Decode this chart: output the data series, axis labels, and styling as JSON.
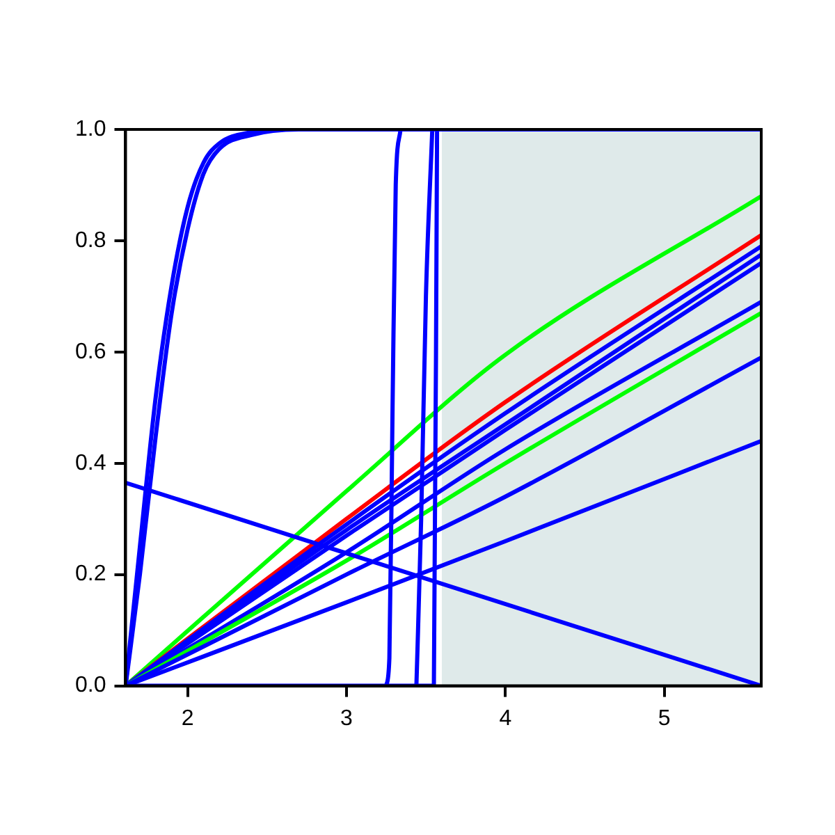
{
  "chart_data": {
    "type": "line",
    "xlim": [
      1.61,
      5.61
    ],
    "ylim": [
      0,
      1
    ],
    "xticks": [
      2,
      3,
      4,
      5
    ],
    "yticks": [
      {
        "value": 0,
        "label": "0.0"
      },
      {
        "value": 0.2,
        "label": "0.2"
      },
      {
        "value": 0.4,
        "label": "0.4"
      },
      {
        "value": 0.6,
        "label": "0.6"
      },
      {
        "value": 0.8,
        "label": "0.8"
      },
      {
        "value": 1,
        "label": "1.0"
      }
    ],
    "grid": false,
    "legend": false,
    "marker": "none",
    "line_style": "solid",
    "bands": [
      {
        "axis": "x",
        "from": 3.6,
        "to": 5.61,
        "color": "#dfeaea"
      }
    ],
    "series": [
      {
        "color": "#0000ff",
        "x": [
          1.61,
          1.7,
          1.8,
          1.9,
          2.0,
          2.1,
          2.2,
          2.4,
          2.6
        ],
        "values": [
          0,
          0.25,
          0.52,
          0.72,
          0.86,
          0.94,
          0.975,
          0.995,
          1
        ]
      },
      {
        "color": "#0000ff",
        "x": [
          1.61,
          1.7,
          1.8,
          1.9,
          2.0,
          2.1,
          2.2,
          2.4,
          2.7,
          5.61
        ],
        "values": [
          0,
          0.2,
          0.45,
          0.67,
          0.82,
          0.92,
          0.965,
          0.99,
          1,
          1
        ]
      },
      {
        "color": "#0000ff",
        "x": [
          3.25,
          3.27,
          3.29,
          3.31,
          3.34
        ],
        "values": [
          0,
          0.05,
          0.5,
          0.9,
          1
        ]
      },
      {
        "color": "#0000ff",
        "x": [
          3.44,
          3.47,
          3.5,
          3.54
        ],
        "values": [
          0,
          0.3,
          0.7,
          1
        ]
      },
      {
        "color": "#0000ff",
        "x": [
          1.61,
          3.55,
          3.57
        ],
        "values": [
          0,
          0,
          1
        ]
      },
      {
        "color": "#0000ff",
        "x": [
          1.61,
          5.61
        ],
        "values": [
          0.365,
          0
        ]
      },
      {
        "color": "#0000ff",
        "x": [
          1.61,
          3,
          4,
          5.61
        ],
        "values": [
          0,
          0.15,
          0.26,
          0.44
        ]
      },
      {
        "color": "#0000ff",
        "x": [
          1.61,
          3,
          4,
          5.61
        ],
        "values": [
          0,
          0.2,
          0.34,
          0.59
        ]
      },
      {
        "color": "#00ff00",
        "x": [
          1.61,
          3,
          4,
          5.61
        ],
        "values": [
          0,
          0.225,
          0.4,
          0.67
        ]
      },
      {
        "color": "#0000ff",
        "x": [
          1.61,
          3,
          4,
          5.61
        ],
        "values": [
          0,
          0.24,
          0.425,
          0.69
        ]
      },
      {
        "color": "#0000ff",
        "x": [
          1.61,
          3,
          4,
          5.61
        ],
        "values": [
          0,
          0.27,
          0.46,
          0.76
        ]
      },
      {
        "color": "#0000ff",
        "x": [
          1.61,
          3,
          4,
          5.61
        ],
        "values": [
          0,
          0.28,
          0.47,
          0.775
        ]
      },
      {
        "color": "#0000ff",
        "x": [
          1.61,
          3,
          4,
          5.61
        ],
        "values": [
          0,
          0.29,
          0.49,
          0.79
        ]
      },
      {
        "color": "#ff0000",
        "x": [
          1.61,
          3,
          4,
          5.61
        ],
        "values": [
          0,
          0.3,
          0.51,
          0.81
        ]
      },
      {
        "color": "#00ff00",
        "x": [
          1.61,
          3,
          4,
          5.61
        ],
        "values": [
          0,
          0.35,
          0.595,
          0.88
        ]
      }
    ]
  }
}
